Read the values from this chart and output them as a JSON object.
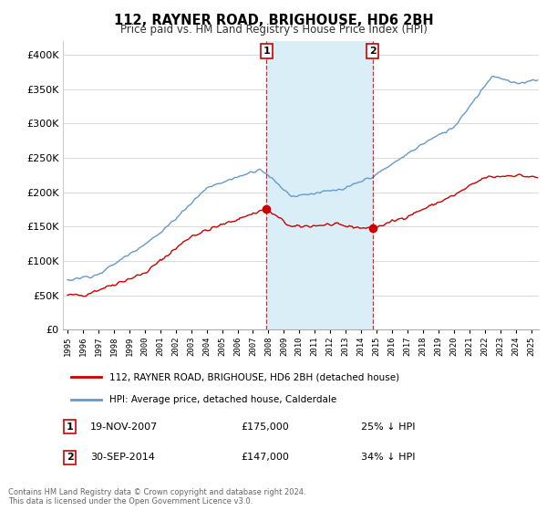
{
  "title": "112, RAYNER ROAD, BRIGHOUSE, HD6 2BH",
  "subtitle": "Price paid vs. HM Land Registry's House Price Index (HPI)",
  "legend_line1": "112, RAYNER ROAD, BRIGHOUSE, HD6 2BH (detached house)",
  "legend_line2": "HPI: Average price, detached house, Calderdale",
  "transaction1_date": "19-NOV-2007",
  "transaction1_price": "£175,000",
  "transaction1_hpi": "25% ↓ HPI",
  "transaction1_year": 2007.88,
  "transaction1_value": 175000,
  "transaction2_date": "30-SEP-2014",
  "transaction2_price": "£147,000",
  "transaction2_hpi": "34% ↓ HPI",
  "transaction2_year": 2014.75,
  "transaction2_value": 147000,
  "footer_line1": "Contains HM Land Registry data © Crown copyright and database right 2024.",
  "footer_line2": "This data is licensed under the Open Government Licence v3.0.",
  "red_color": "#cc0000",
  "blue_color": "#6699cc",
  "shade_color": "#daeef8",
  "vline_color": "#cc0000",
  "marker_box_color": "#cc0000",
  "ylim_max": 420000,
  "xlim_start": 1994.7,
  "xlim_end": 2025.5
}
